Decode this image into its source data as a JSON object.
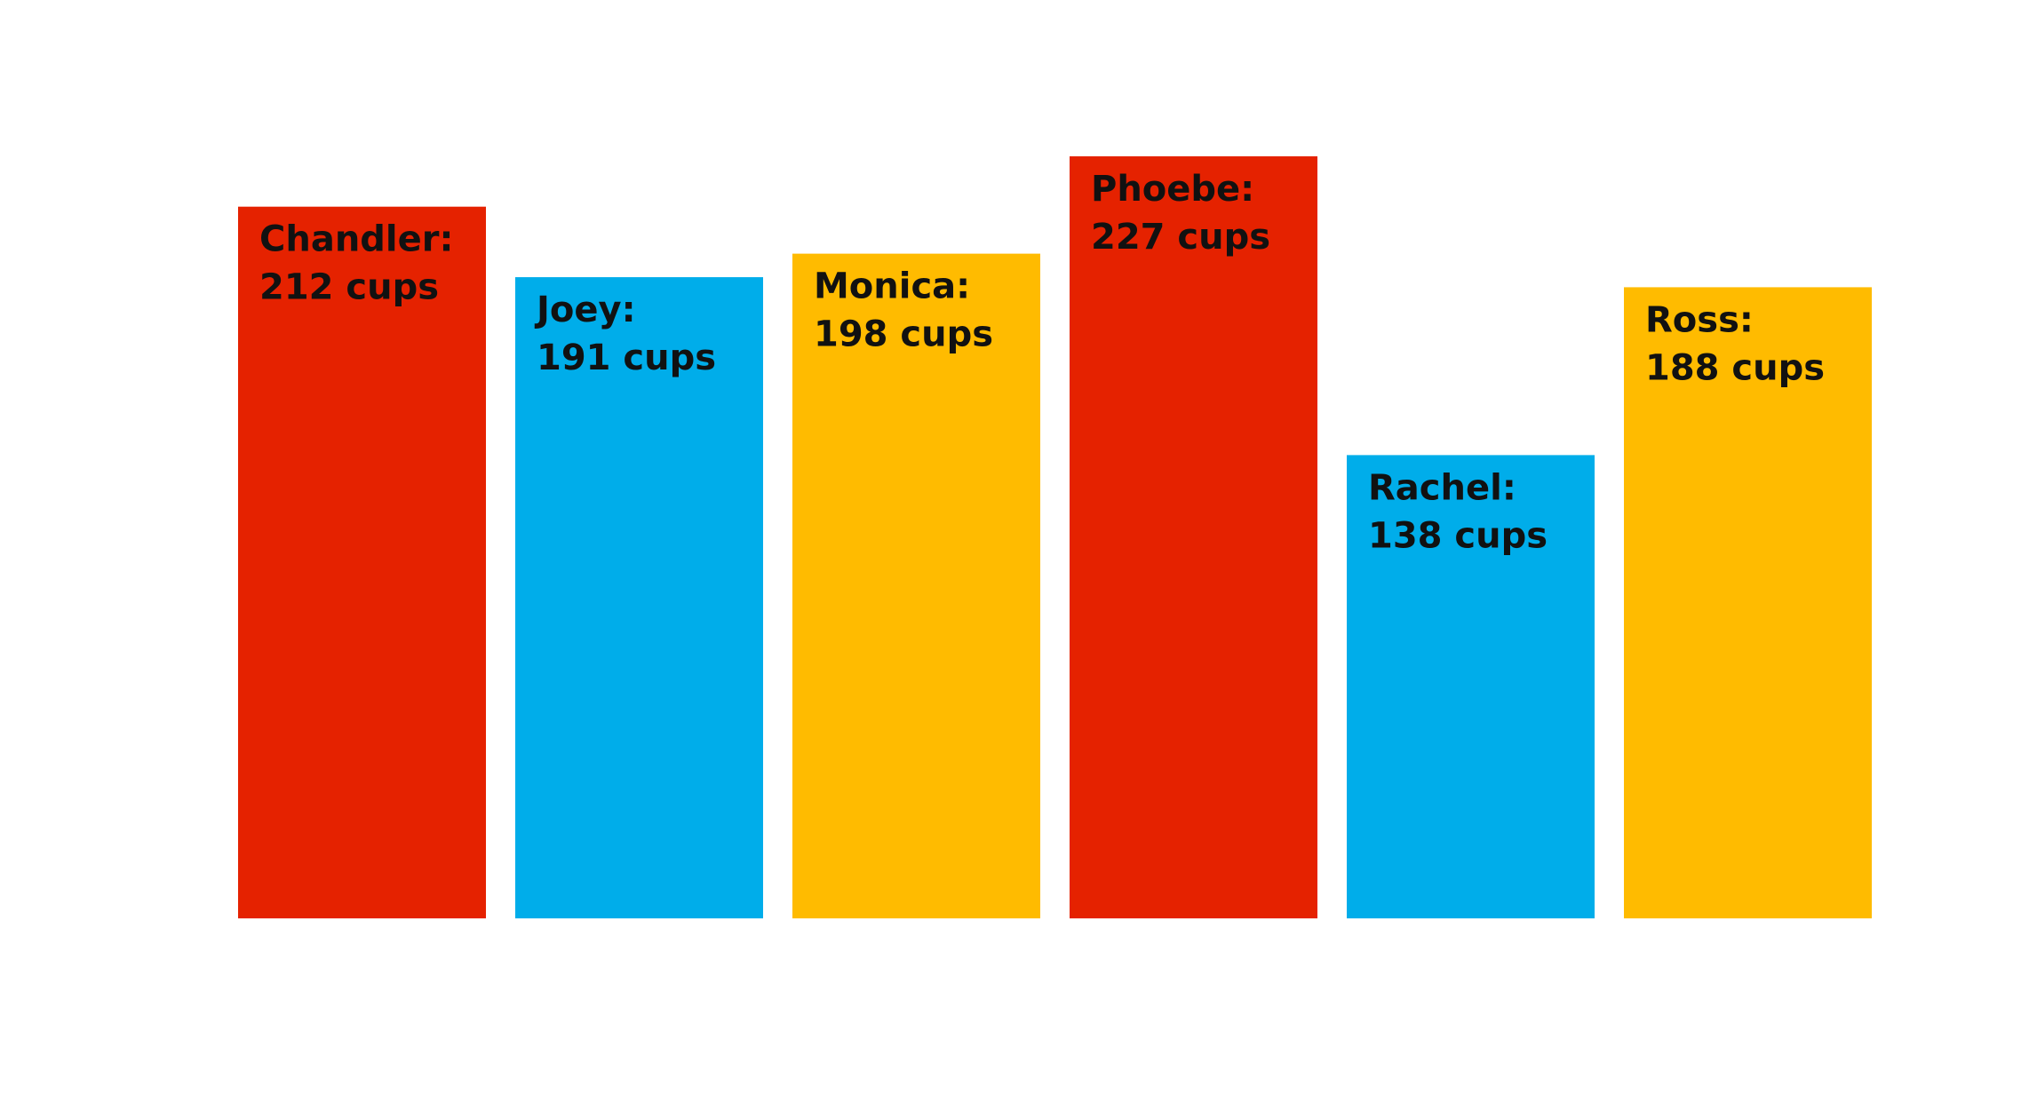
{
  "chart_data": {
    "type": "bar",
    "categories": [
      "Chandler",
      "Joey",
      "Monica",
      "Phoebe",
      "Rachel",
      "Ross"
    ],
    "values": [
      212,
      191,
      198,
      227,
      138,
      188
    ],
    "unit": "cups",
    "labels": [
      {
        "name": "Chandler:",
        "value": "212 cups"
      },
      {
        "name": "Joey:",
        "value": "191 cups"
      },
      {
        "name": "Monica:",
        "value": "198 cups"
      },
      {
        "name": "Phoebe:",
        "value": "227 cups"
      },
      {
        "name": "Rachel:",
        "value": "138 cups"
      },
      {
        "name": "Ross:",
        "value": "188 cups"
      }
    ],
    "colors": [
      "#e52200",
      "#00adea",
      "#ffbb00",
      "#e52200",
      "#00adea",
      "#ffbb00"
    ],
    "title": "",
    "xlabel": "",
    "ylabel": "",
    "ylim": [
      0,
      227
    ],
    "grid": false,
    "legend": "none"
  }
}
